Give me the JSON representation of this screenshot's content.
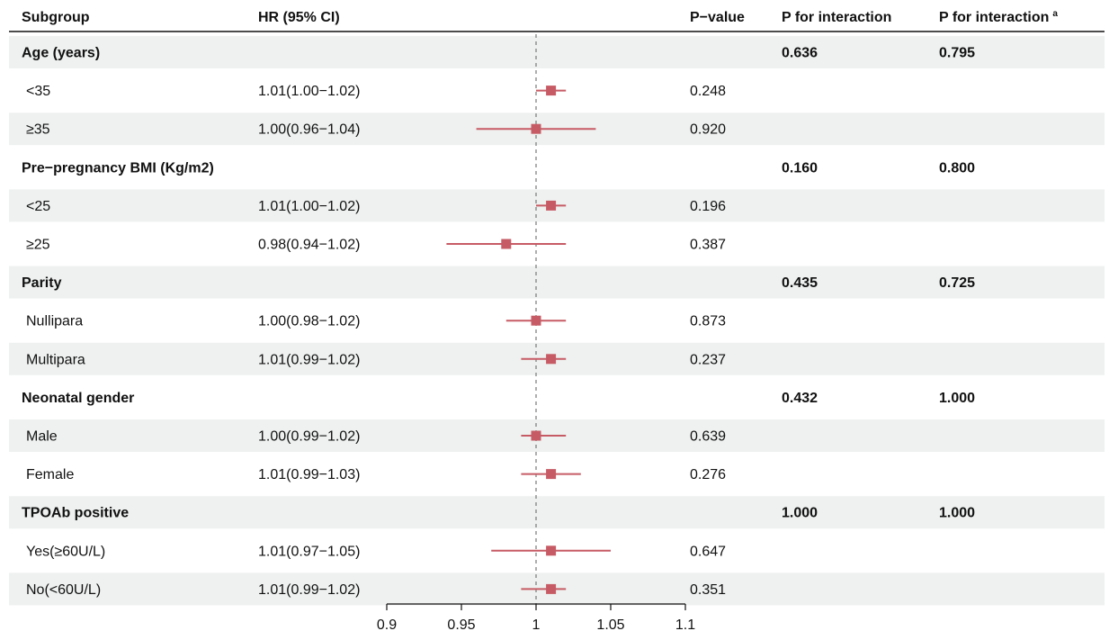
{
  "headers": {
    "subgroup": "Subgroup",
    "hr": "HR (95% CI)",
    "pvalue": "P−value",
    "pint": "P for interaction",
    "pint_a": "P for interaction",
    "pint_a_sup": "a"
  },
  "colors": {
    "band": "#eef1f0",
    "marker": "#c75b65",
    "text": "#111111",
    "refline": "#777777"
  },
  "chart_data": {
    "type": "forest",
    "xlim": [
      0.9,
      1.1
    ],
    "reference": 1,
    "xticks": [
      0.9,
      0.95,
      1,
      1.05,
      1.1
    ],
    "xtick_labels": [
      "0.9",
      "0.95",
      "1",
      "1.05",
      "1.1"
    ],
    "rows": [
      {
        "kind": "group",
        "label": "Age (years)",
        "p_int": "0.636",
        "p_int_a": "0.795"
      },
      {
        "kind": "item",
        "label": "<35",
        "hr_text": "1.01(1.00−1.02)",
        "hr": 1.01,
        "lo": 1.0,
        "hi": 1.02,
        "p": "0.248"
      },
      {
        "kind": "item",
        "label": "≥35",
        "hr_text": "1.00(0.96−1.04)",
        "hr": 1.0,
        "lo": 0.96,
        "hi": 1.04,
        "p": "0.920"
      },
      {
        "kind": "group",
        "label": "Pre−pregnancy BMI (Kg/m2)",
        "p_int": "0.160",
        "p_int_a": "0.800"
      },
      {
        "kind": "item",
        "label": "<25",
        "hr_text": "1.01(1.00−1.02)",
        "hr": 1.01,
        "lo": 1.0,
        "hi": 1.02,
        "p": "0.196"
      },
      {
        "kind": "item",
        "label": "≥25",
        "hr_text": "0.98(0.94−1.02)",
        "hr": 0.98,
        "lo": 0.94,
        "hi": 1.02,
        "p": "0.387"
      },
      {
        "kind": "group",
        "label": "Parity",
        "p_int": "0.435",
        "p_int_a": "0.725"
      },
      {
        "kind": "item",
        "label": "Nullipara",
        "hr_text": "1.00(0.98−1.02)",
        "hr": 1.0,
        "lo": 0.98,
        "hi": 1.02,
        "p": "0.873"
      },
      {
        "kind": "item",
        "label": "Multipara",
        "hr_text": "1.01(0.99−1.02)",
        "hr": 1.01,
        "lo": 0.99,
        "hi": 1.02,
        "p": "0.237"
      },
      {
        "kind": "group",
        "label": "Neonatal gender",
        "p_int": "0.432",
        "p_int_a": "1.000"
      },
      {
        "kind": "item",
        "label": "Male",
        "hr_text": "1.00(0.99−1.02)",
        "hr": 1.0,
        "lo": 0.99,
        "hi": 1.02,
        "p": "0.639"
      },
      {
        "kind": "item",
        "label": "Female",
        "hr_text": "1.01(0.99−1.03)",
        "hr": 1.01,
        "lo": 0.99,
        "hi": 1.03,
        "p": "0.276"
      },
      {
        "kind": "group",
        "label": "TPOAb positive",
        "p_int": "1.000",
        "p_int_a": "1.000"
      },
      {
        "kind": "item",
        "label": "Yes(≥60U/L)",
        "hr_text": "1.01(0.97−1.05)",
        "hr": 1.01,
        "lo": 0.97,
        "hi": 1.05,
        "p": "0.647"
      },
      {
        "kind": "item",
        "label": "No(<60U/L)",
        "hr_text": "1.01(0.99−1.02)",
        "hr": 1.01,
        "lo": 0.99,
        "hi": 1.02,
        "p": "0.351"
      }
    ]
  }
}
